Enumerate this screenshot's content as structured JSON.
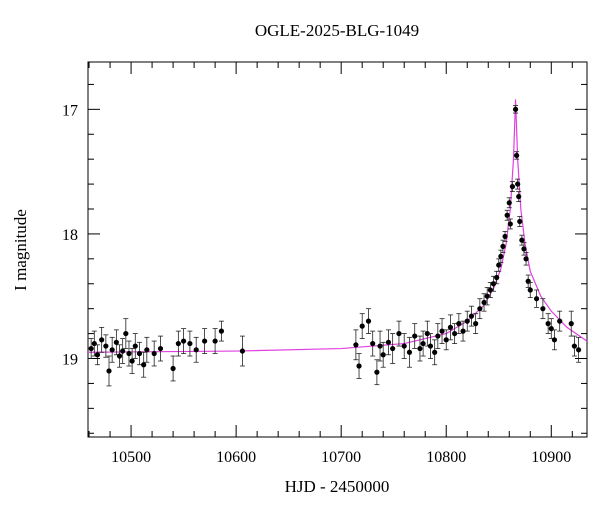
{
  "chart_data": {
    "type": "scatter",
    "title": "OGLE-2025-BLG-1049",
    "x_label": "HJD - 2450000",
    "y_label": "I magnitude",
    "y_inverted": true,
    "xlim": [
      10459,
      10934
    ],
    "ylim": [
      16.62,
      19.63
    ],
    "xticks": [
      10500,
      10600,
      10700,
      10800,
      10900
    ],
    "yticks": [
      17,
      18,
      19
    ],
    "xminorticks": [
      10460,
      10480,
      10520,
      10540,
      10560,
      10580,
      10620,
      10640,
      10660,
      10680,
      10720,
      10740,
      10760,
      10780,
      10820,
      10840,
      10860,
      10880,
      10920
    ],
    "yminorticks": [
      16.8,
      17.2,
      17.4,
      17.6,
      17.8,
      18.2,
      18.4,
      18.6,
      18.8,
      19.2,
      19.4,
      19.6
    ],
    "color": "#000000",
    "x": [
      10462,
      10465,
      10468,
      10472,
      10476,
      10479,
      10482,
      10486,
      10489,
      10492,
      10495,
      10498,
      10501,
      10504,
      10508,
      10512,
      10515,
      10522,
      10528,
      10540,
      10545,
      10550,
      10556,
      10562,
      10570,
      10580,
      10586,
      10606,
      10714,
      10717,
      10720,
      10726,
      10730,
      10734,
      10737,
      10740,
      10745,
      10749,
      10755,
      10760,
      10765,
      10770,
      10775,
      10778,
      10782,
      10785,
      10789,
      10792,
      10796,
      10800,
      10804,
      10808,
      10812,
      10816,
      10820,
      10824,
      10828,
      10832,
      10836,
      10839,
      10842,
      10845,
      10848,
      10850,
      10852,
      10854,
      10856,
      10858,
      10860,
      10861,
      10863,
      10866,
      10867,
      10868,
      10869,
      10870,
      10872,
      10874,
      10876,
      10878,
      10880,
      10886,
      10892,
      10897,
      10900,
      10903,
      10908,
      10919,
      10922,
      10926
    ],
    "values": [
      18.92,
      18.88,
      18.97,
      18.85,
      18.9,
      19.1,
      18.93,
      18.87,
      18.98,
      18.94,
      18.8,
      18.96,
      19.02,
      18.9,
      18.96,
      19.05,
      18.93,
      18.96,
      18.92,
      19.08,
      18.88,
      18.86,
      18.88,
      18.93,
      18.86,
      18.86,
      18.78,
      18.94,
      18.89,
      19.06,
      18.74,
      18.7,
      18.88,
      19.11,
      18.9,
      18.97,
      18.87,
      18.92,
      18.8,
      18.9,
      18.95,
      18.82,
      18.92,
      18.88,
      18.8,
      18.9,
      18.95,
      18.82,
      18.78,
      18.85,
      18.75,
      18.8,
      18.72,
      18.78,
      18.7,
      18.66,
      18.72,
      18.6,
      18.55,
      18.5,
      18.45,
      18.4,
      18.35,
      18.25,
      18.18,
      18.1,
      18.02,
      17.85,
      17.75,
      17.92,
      17.62,
      17.0,
      17.37,
      17.6,
      17.7,
      17.9,
      18.05,
      18.12,
      18.2,
      18.38,
      18.45,
      18.52,
      18.6,
      18.72,
      18.76,
      18.85,
      18.7,
      18.72,
      18.9,
      18.93
    ],
    "errors": [
      0.08,
      0.1,
      0.08,
      0.1,
      0.09,
      0.12,
      0.1,
      0.1,
      0.09,
      0.1,
      0.12,
      0.1,
      0.1,
      0.1,
      0.09,
      0.1,
      0.1,
      0.1,
      0.1,
      0.1,
      0.1,
      0.1,
      0.1,
      0.1,
      0.1,
      0.1,
      0.08,
      0.12,
      0.12,
      0.1,
      0.1,
      0.1,
      0.1,
      0.1,
      0.12,
      0.1,
      0.1,
      0.12,
      0.1,
      0.1,
      0.12,
      0.1,
      0.1,
      0.1,
      0.1,
      0.1,
      0.1,
      0.1,
      0.1,
      0.08,
      0.1,
      0.08,
      0.08,
      0.08,
      0.08,
      0.08,
      0.08,
      0.08,
      0.07,
      0.07,
      0.06,
      0.06,
      0.05,
      0.05,
      0.05,
      0.05,
      0.04,
      0.04,
      0.04,
      0.04,
      0.04,
      0.03,
      0.03,
      0.04,
      0.04,
      0.04,
      0.04,
      0.05,
      0.05,
      0.05,
      0.06,
      0.07,
      0.08,
      0.08,
      0.08,
      0.08,
      0.08,
      0.1,
      0.08,
      0.1
    ],
    "model": {
      "color": "#e040e0",
      "x": [
        10459,
        10600,
        10700,
        10760,
        10800,
        10820,
        10835,
        10845,
        10852,
        10857,
        10861,
        10864,
        10866,
        10868,
        10871,
        10875,
        10880,
        10890,
        10900,
        10915,
        10934
      ],
      "values": [
        18.95,
        18.94,
        18.92,
        18.88,
        18.8,
        18.7,
        18.58,
        18.44,
        18.28,
        18.08,
        17.8,
        17.4,
        16.92,
        17.4,
        17.8,
        18.08,
        18.3,
        18.5,
        18.62,
        18.75,
        18.86
      ]
    }
  }
}
